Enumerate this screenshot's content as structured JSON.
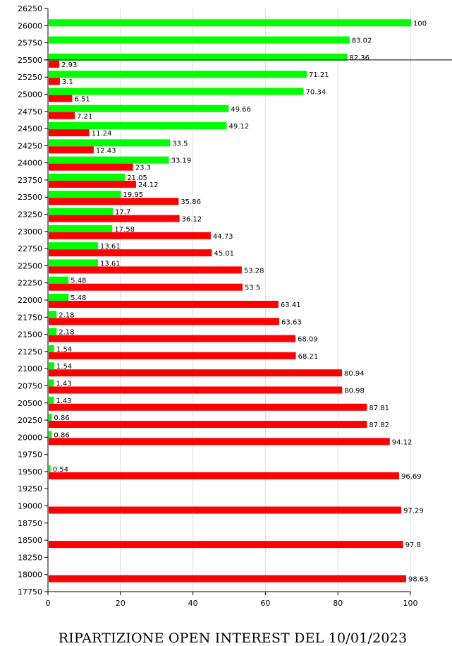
{
  "chart_data": {
    "type": "bar",
    "orientation": "horizontal",
    "title": "RIPARTIZIONE OPEN INTEREST DEL 10/01/2023",
    "xlim": [
      0,
      100
    ],
    "ylim": [
      17750,
      26250
    ],
    "x_ticks": [
      "0",
      "20",
      "40",
      "60",
      "80",
      "100"
    ],
    "y_ticks": [
      "26250",
      "26000",
      "25750",
      "25500",
      "25250",
      "25000",
      "24750",
      "24500",
      "24250",
      "24000",
      "23750",
      "23500",
      "23250",
      "23000",
      "22750",
      "22500",
      "22250",
      "22000",
      "21750",
      "21500",
      "21250",
      "21000",
      "20750",
      "20500",
      "20250",
      "20000",
      "19750",
      "19500",
      "19250",
      "19000",
      "18750",
      "18500",
      "18250",
      "18000",
      "17750"
    ],
    "grid": true,
    "reference_line_strike": 25500,
    "series": [
      {
        "color": "#00ff00",
        "points": [
          {
            "strike": 26000,
            "value": 100,
            "label": "100"
          },
          {
            "strike": 25750,
            "value": 83.02,
            "label": "83.02"
          },
          {
            "strike": 25500,
            "value": 82.36,
            "label": "82.36"
          },
          {
            "strike": 25250,
            "value": 71.21,
            "label": "71.21"
          },
          {
            "strike": 25000,
            "value": 70.34,
            "label": "70.34"
          },
          {
            "strike": 24750,
            "value": 49.66,
            "label": "49.66"
          },
          {
            "strike": 24500,
            "value": 49.12,
            "label": "49.12"
          },
          {
            "strike": 24250,
            "value": 33.5,
            "label": "33.5"
          },
          {
            "strike": 24000,
            "value": 33.19,
            "label": "33.19"
          },
          {
            "strike": 23750,
            "value": 21.05,
            "label": "21.05"
          },
          {
            "strike": 23500,
            "value": 19.95,
            "label": "19.95"
          },
          {
            "strike": 23250,
            "value": 17.7,
            "label": "17.7"
          },
          {
            "strike": 23000,
            "value": 17.58,
            "label": "17.58"
          },
          {
            "strike": 22750,
            "value": 13.61,
            "label": "13.61"
          },
          {
            "strike": 22500,
            "value": 13.61,
            "label": "13.61"
          },
          {
            "strike": 22250,
            "value": 5.48,
            "label": "5.48"
          },
          {
            "strike": 22000,
            "value": 5.48,
            "label": "5.48"
          },
          {
            "strike": 21750,
            "value": 2.18,
            "label": "2.18"
          },
          {
            "strike": 21500,
            "value": 2.18,
            "label": "2.18"
          },
          {
            "strike": 21250,
            "value": 1.54,
            "label": "1.54"
          },
          {
            "strike": 21000,
            "value": 1.54,
            "label": "1.54"
          },
          {
            "strike": 20750,
            "value": 1.43,
            "label": "1.43"
          },
          {
            "strike": 20500,
            "value": 1.43,
            "label": "1.43"
          },
          {
            "strike": 20250,
            "value": 0.86,
            "label": "0.86"
          },
          {
            "strike": 20000,
            "value": 0.86,
            "label": "0.86"
          },
          {
            "strike": 19500,
            "value": 0.54,
            "label": "0.54"
          }
        ]
      },
      {
        "color": "#ff0000",
        "points": [
          {
            "strike": 25500,
            "value": 2.93,
            "label": "2.93"
          },
          {
            "strike": 25250,
            "value": 3.1,
            "label": "3.1"
          },
          {
            "strike": 25000,
            "value": 6.51,
            "label": "6.51"
          },
          {
            "strike": 24750,
            "value": 7.21,
            "label": "7.21"
          },
          {
            "strike": 24500,
            "value": 11.24,
            "label": "11.24"
          },
          {
            "strike": 24250,
            "value": 12.43,
            "label": "12.43"
          },
          {
            "strike": 24000,
            "value": 23.3,
            "label": "23.3"
          },
          {
            "strike": 23750,
            "value": 24.12,
            "label": "24.12"
          },
          {
            "strike": 23500,
            "value": 35.86,
            "label": "35.86"
          },
          {
            "strike": 23250,
            "value": 36.12,
            "label": "36.12"
          },
          {
            "strike": 23000,
            "value": 44.73,
            "label": "44.73"
          },
          {
            "strike": 22750,
            "value": 45.01,
            "label": "45.01"
          },
          {
            "strike": 22500,
            "value": 53.28,
            "label": "53.28"
          },
          {
            "strike": 22250,
            "value": 53.5,
            "label": "53.5"
          },
          {
            "strike": 22000,
            "value": 63.41,
            "label": "63.41"
          },
          {
            "strike": 21750,
            "value": 63.63,
            "label": "63.63"
          },
          {
            "strike": 21500,
            "value": 68.09,
            "label": "68.09"
          },
          {
            "strike": 21250,
            "value": 68.21,
            "label": "68.21"
          },
          {
            "strike": 21000,
            "value": 80.94,
            "label": "80.94"
          },
          {
            "strike": 20750,
            "value": 80.98,
            "label": "80.98"
          },
          {
            "strike": 20500,
            "value": 87.81,
            "label": "87.81"
          },
          {
            "strike": 20250,
            "value": 87.82,
            "label": "87.82"
          },
          {
            "strike": 20000,
            "value": 94.12,
            "label": "94.12"
          },
          {
            "strike": 19500,
            "value": 96.69,
            "label": "96.69"
          },
          {
            "strike": 19000,
            "value": 97.29,
            "label": "97.29"
          },
          {
            "strike": 18500,
            "value": 97.8,
            "label": "97.8"
          },
          {
            "strike": 18000,
            "value": 98.63,
            "label": "98.63"
          }
        ]
      }
    ]
  }
}
